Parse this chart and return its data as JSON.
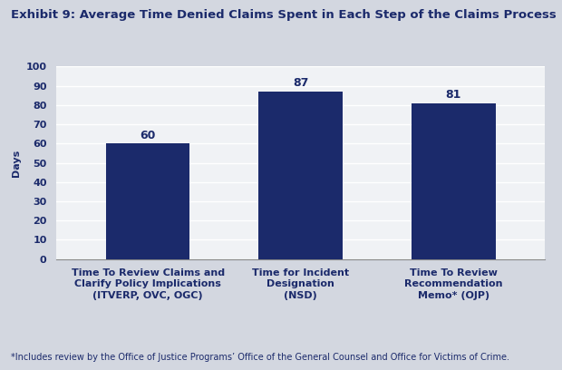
{
  "title": "Exhibit 9: Average Time Denied Claims Spent in Each Step of the Claims Process",
  "categories": [
    "Time To Review Claims and\nClarify Policy Implications\n(ITVERP, OVC, OGC)",
    "Time for Incident\nDesignation\n(NSD)",
    "Time To Review\nRecommendation\nMemo* (OJP)"
  ],
  "values": [
    60,
    87,
    81
  ],
  "bar_color": "#1b2a6b",
  "ylabel": "Days",
  "ylim": [
    0,
    100
  ],
  "yticks": [
    0,
    10,
    20,
    30,
    40,
    50,
    60,
    70,
    80,
    90,
    100
  ],
  "footnote": "*Includes review by the Office of Justice Programs’ Office of the General Counsel and Office for Victims of Crime.",
  "background_color": "#d3d7e0",
  "plot_background_color": "#f0f2f5",
  "title_color": "#1b2a6b",
  "bar_label_color": "#1b2a6b",
  "label_color": "#1b2a6b",
  "tick_color": "#1b2a6b",
  "title_fontsize": 9.5,
  "label_fontsize": 8,
  "tick_fontsize": 8,
  "bar_label_fontsize": 9,
  "footnote_fontsize": 7
}
